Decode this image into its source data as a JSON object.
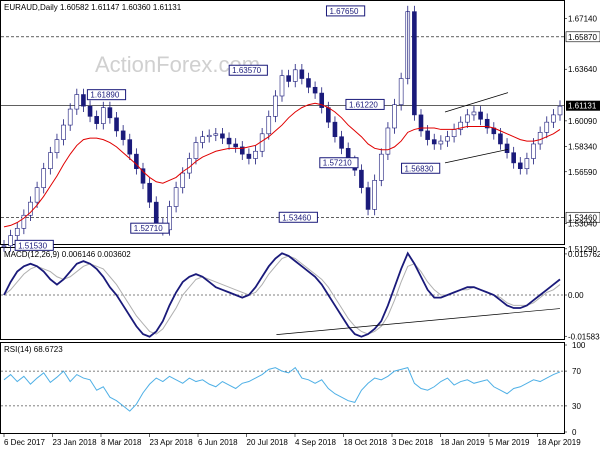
{
  "chart_data": [
    {
      "type": "candlestick",
      "header": "EURAUD,Daily  1.60582 1.61147 1.60360 1.61131",
      "watermark": "ActionForex.com",
      "ylim": [
        1.5176,
        1.6785
      ],
      "yticks": [
        "1.67140",
        "1.65870",
        "1.63640",
        "1.61131",
        "1.60090",
        "1.58340",
        "1.56590",
        "1.53460",
        "1.53040",
        "1.51290"
      ],
      "ytick_values": [
        1.6714,
        1.6587,
        1.6364,
        1.61131,
        1.6009,
        1.5834,
        1.5659,
        1.5346,
        1.5304,
        1.5129
      ],
      "price_labels": [
        {
          "text": "1.67650",
          "x": 0.58,
          "y": 1.6765
        },
        {
          "text": "1.63570",
          "x": 0.405,
          "y": 1.6357
        },
        {
          "text": "1.61890",
          "x": 0.15,
          "y": 1.6189
        },
        {
          "text": "1.61220",
          "x": 0.615,
          "y": 1.6122
        },
        {
          "text": "1.57210",
          "x": 0.568,
          "y": 1.5721
        },
        {
          "text": "1.56830",
          "x": 0.715,
          "y": 1.5683
        },
        {
          "text": "1.53460",
          "x": 0.495,
          "y": 1.5346
        },
        {
          "text": "1.52710",
          "x": 0.228,
          "y": 1.5271
        },
        {
          "text": "1.51530",
          "x": 0.02,
          "y": 1.5153
        }
      ],
      "horizontal_lines": [
        1.6587,
        1.6113,
        1.5346
      ],
      "close_series": [
        1.515,
        1.522,
        1.527,
        1.536,
        1.545,
        1.555,
        1.568,
        1.579,
        1.588,
        1.598,
        1.609,
        1.619,
        1.611,
        1.604,
        1.599,
        1.61,
        1.603,
        1.594,
        1.588,
        1.578,
        1.568,
        1.558,
        1.545,
        1.53,
        1.526,
        1.542,
        1.555,
        1.565,
        1.575,
        1.586,
        1.59,
        1.591,
        1.592,
        1.589,
        1.585,
        1.583,
        1.578,
        1.575,
        1.58,
        1.592,
        1.604,
        1.618,
        1.632,
        1.628,
        1.636,
        1.63,
        1.624,
        1.62,
        1.61,
        1.6,
        1.59,
        1.582,
        1.573,
        1.567,
        1.555,
        1.54,
        1.56,
        1.578,
        1.596,
        1.612,
        1.63,
        1.676,
        1.605,
        1.594,
        1.588,
        1.585,
        1.587,
        1.59,
        1.595,
        1.6,
        1.605,
        1.607,
        1.602,
        1.596,
        1.592,
        1.585,
        1.579,
        1.572,
        1.568,
        1.575,
        1.585,
        1.593,
        1.6,
        1.605,
        1.611
      ],
      "moving_average": [
        1.528,
        1.529,
        1.531,
        1.534,
        1.538,
        1.543,
        1.549,
        1.556,
        1.563,
        1.571,
        1.578,
        1.584,
        1.588,
        1.589,
        1.589,
        1.588,
        1.586,
        1.583,
        1.579,
        1.575,
        1.571,
        1.566,
        1.562,
        1.559,
        1.558,
        1.56,
        1.562,
        1.566,
        1.569,
        1.573,
        1.576,
        1.578,
        1.58,
        1.581,
        1.582,
        1.582,
        1.582,
        1.583,
        1.584,
        1.587,
        1.59,
        1.594,
        1.598,
        1.603,
        1.607,
        1.61,
        1.612,
        1.613,
        1.612,
        1.61,
        1.607,
        1.603,
        1.598,
        1.594,
        1.59,
        1.585,
        1.582,
        1.581,
        1.581,
        1.583,
        1.587,
        1.593,
        1.595,
        1.596,
        1.596,
        1.596,
        1.595,
        1.595,
        1.595,
        1.596,
        1.597,
        1.597,
        1.597,
        1.597,
        1.596,
        1.594,
        1.592,
        1.59,
        1.588,
        1.587,
        1.587,
        1.588,
        1.59,
        1.592,
        1.595
      ]
    },
    {
      "type": "line",
      "header": "MACD(12,26,9) 0.006146 0.003602",
      "ylim": [
        -0.0165,
        0.0165
      ],
      "yticks": [
        "0.015762",
        "0.00",
        "-0.015834"
      ],
      "ytick_values": [
        0.015762,
        0.0,
        -0.015834
      ],
      "series": [
        {
          "values": [
            0.0,
            0.005,
            0.009,
            0.011,
            0.012,
            0.011,
            0.009,
            0.006,
            0.004,
            0.006,
            0.009,
            0.012,
            0.013,
            0.012,
            0.01,
            0.007,
            0.003,
            0.0,
            -0.004,
            -0.008,
            -0.012,
            -0.015,
            -0.016,
            -0.014,
            -0.01,
            -0.004,
            0.001,
            0.005,
            0.007,
            0.008,
            0.007,
            0.005,
            0.003,
            0.002,
            0.001,
            0.0,
            -0.001,
            0.0,
            0.003,
            0.007,
            0.011,
            0.014,
            0.016,
            0.015,
            0.013,
            0.011,
            0.009,
            0.007,
            0.004,
            0.0,
            -0.004,
            -0.008,
            -0.012,
            -0.015,
            -0.016,
            -0.015,
            -0.013,
            -0.01,
            -0.004,
            0.003,
            0.01,
            0.016,
            0.012,
            0.007,
            0.002,
            -0.001,
            -0.001,
            0.0,
            0.001,
            0.002,
            0.003,
            0.003,
            0.002,
            0.001,
            0.0,
            -0.002,
            -0.004,
            -0.005,
            -0.005,
            -0.004,
            -0.002,
            0.0,
            0.002,
            0.004,
            0.006
          ]
        },
        {
          "values": [
            0.0,
            0.002,
            0.005,
            0.008,
            0.01,
            0.011,
            0.01,
            0.009,
            0.007,
            0.006,
            0.007,
            0.009,
            0.011,
            0.012,
            0.011,
            0.01,
            0.007,
            0.004,
            0.0,
            -0.004,
            -0.008,
            -0.011,
            -0.014,
            -0.015,
            -0.013,
            -0.009,
            -0.005,
            0.0,
            0.003,
            0.006,
            0.007,
            0.006,
            0.005,
            0.004,
            0.003,
            0.002,
            0.001,
            0.0,
            0.001,
            0.004,
            0.008,
            0.011,
            0.014,
            0.015,
            0.014,
            0.012,
            0.01,
            0.008,
            0.006,
            0.003,
            -0.001,
            -0.005,
            -0.009,
            -0.012,
            -0.014,
            -0.015,
            -0.014,
            -0.012,
            -0.008,
            -0.002,
            0.005,
            0.011,
            0.012,
            0.009,
            0.005,
            0.002,
            0.0,
            0.0,
            0.001,
            0.002,
            0.002,
            0.003,
            0.002,
            0.001,
            0.0,
            -0.001,
            -0.003,
            -0.004,
            -0.004,
            -0.004,
            -0.003,
            -0.001,
            0.001,
            0.002,
            0.004
          ]
        }
      ],
      "trendline": [
        [
          0.49,
          -0.0152
        ],
        [
          1.0,
          -0.0052
        ]
      ]
    },
    {
      "type": "line",
      "header": "RSI(14) 68.6723",
      "ylim": [
        0,
        100
      ],
      "yticks": [
        "100",
        "70",
        "30",
        "0"
      ],
      "ytick_values": [
        100,
        70,
        30,
        0
      ],
      "series": [
        {
          "values": [
            60,
            66,
            58,
            64,
            55,
            62,
            68,
            57,
            63,
            70,
            58,
            66,
            62,
            60,
            48,
            52,
            40,
            36,
            30,
            24,
            32,
            45,
            55,
            62,
            58,
            64,
            60,
            56,
            62,
            58,
            60,
            55,
            52,
            58,
            54,
            50,
            56,
            58,
            62,
            66,
            72,
            74,
            70,
            68,
            74,
            62,
            60,
            56,
            60,
            50,
            44,
            40,
            36,
            34,
            48,
            56,
            62,
            60,
            64,
            70,
            72,
            74,
            56,
            50,
            48,
            52,
            58,
            62,
            54,
            58,
            60,
            56,
            58,
            60,
            52,
            48,
            44,
            50,
            52,
            56,
            60,
            58,
            62,
            66,
            69
          ]
        }
      ]
    }
  ],
  "x_axis": {
    "labels": [
      "6 Dec 2017",
      "23 Jan 2018",
      "8 Mar 2018",
      "23 Apr 2018",
      "6 Jun 2018",
      "20 Jul 2018",
      "4 Sep 2018",
      "18 Oct 2018",
      "3 Dec 2018",
      "18 Jan 2019",
      "5 Mar 2019",
      "18 Apr 2019"
    ]
  },
  "colors": {
    "candle": "#1a1a7a",
    "ma": "#e00000",
    "macd": "#1a1a7a",
    "signal": "#b0b0b0",
    "rsi": "#4fb0e6",
    "grid": "#000000"
  }
}
